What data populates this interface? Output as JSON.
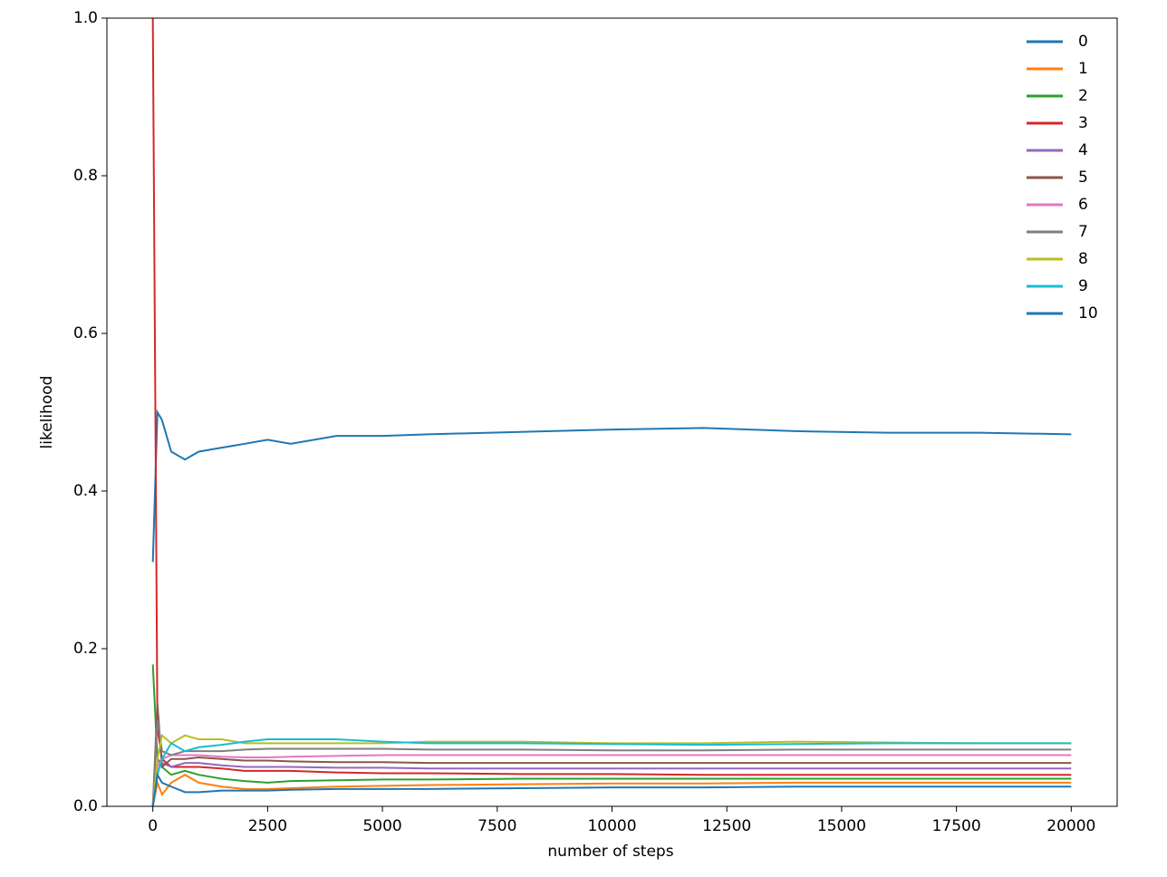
{
  "chart_data": {
    "type": "line",
    "xlabel": "number of steps",
    "ylabel": "likelihood",
    "x": [
      0,
      100,
      200,
      400,
      700,
      1000,
      1500,
      2000,
      2500,
      3000,
      4000,
      5000,
      6000,
      8000,
      10000,
      12000,
      14000,
      16000,
      18000,
      20000
    ],
    "xlim": [
      -1000,
      21000
    ],
    "ylim": [
      0,
      1
    ],
    "xticks": [
      0,
      2500,
      5000,
      7500,
      10000,
      12500,
      15000,
      17500,
      20000
    ],
    "yticks": [
      {
        "value": 0,
        "label": "0.0"
      },
      0.2,
      0.4,
      0.6,
      0.8,
      {
        "value": 1,
        "label": "1.0"
      }
    ],
    "legend": "upper right",
    "series": [
      {
        "name": "0",
        "color": "#1f77b4",
        "values": [
          0.31,
          0.5,
          0.49,
          0.45,
          0.44,
          0.45,
          0.455,
          0.46,
          0.465,
          0.46,
          0.47,
          0.47,
          0.472,
          0.475,
          0.478,
          0.48,
          0.476,
          0.474,
          0.474,
          0.472
        ]
      },
      {
        "name": "1",
        "color": "#ff7f0e",
        "values": [
          0.0,
          0.03,
          0.015,
          0.03,
          0.04,
          0.03,
          0.025,
          0.022,
          0.022,
          0.023,
          0.025,
          0.026,
          0.027,
          0.028,
          0.029,
          0.029,
          0.03,
          0.03,
          0.03,
          0.03
        ]
      },
      {
        "name": "2",
        "color": "#2ca02c",
        "values": [
          0.18,
          0.06,
          0.05,
          0.04,
          0.045,
          0.04,
          0.035,
          0.032,
          0.03,
          0.032,
          0.033,
          0.034,
          0.034,
          0.035,
          0.035,
          0.035,
          0.035,
          0.035,
          0.035,
          0.035
        ]
      },
      {
        "name": "3",
        "color": "#d62728",
        "values": [
          1.0,
          0.1,
          0.06,
          0.05,
          0.05,
          0.05,
          0.048,
          0.045,
          0.045,
          0.045,
          0.043,
          0.042,
          0.042,
          0.041,
          0.041,
          0.04,
          0.04,
          0.04,
          0.04,
          0.04
        ]
      },
      {
        "name": "4",
        "color": "#9467bd",
        "values": [
          0.0,
          0.06,
          0.055,
          0.05,
          0.055,
          0.055,
          0.052,
          0.05,
          0.05,
          0.05,
          0.049,
          0.049,
          0.048,
          0.048,
          0.048,
          0.048,
          0.048,
          0.048,
          0.048,
          0.048
        ]
      },
      {
        "name": "5",
        "color": "#8c564b",
        "values": [
          0.0,
          0.13,
          0.05,
          0.06,
          0.06,
          0.062,
          0.06,
          0.058,
          0.058,
          0.057,
          0.056,
          0.056,
          0.055,
          0.055,
          0.055,
          0.055,
          0.055,
          0.055,
          0.055,
          0.055
        ]
      },
      {
        "name": "6",
        "color": "#e377c2",
        "values": [
          0.0,
          0.05,
          0.06,
          0.065,
          0.065,
          0.065,
          0.063,
          0.062,
          0.062,
          0.063,
          0.064,
          0.065,
          0.065,
          0.065,
          0.065,
          0.065,
          0.065,
          0.065,
          0.065,
          0.065
        ]
      },
      {
        "name": "7",
        "color": "#7f7f7f",
        "values": [
          0.0,
          0.11,
          0.07,
          0.065,
          0.07,
          0.07,
          0.07,
          0.072,
          0.073,
          0.073,
          0.073,
          0.073,
          0.072,
          0.072,
          0.071,
          0.071,
          0.072,
          0.072,
          0.072,
          0.072
        ]
      },
      {
        "name": "8",
        "color": "#bcbd22",
        "values": [
          0.0,
          0.06,
          0.09,
          0.08,
          0.09,
          0.085,
          0.085,
          0.08,
          0.08,
          0.08,
          0.08,
          0.08,
          0.082,
          0.082,
          0.08,
          0.08,
          0.082,
          0.081,
          0.08,
          0.08
        ]
      },
      {
        "name": "9",
        "color": "#17becf",
        "values": [
          0.0,
          0.04,
          0.06,
          0.08,
          0.07,
          0.075,
          0.078,
          0.082,
          0.085,
          0.085,
          0.085,
          0.082,
          0.08,
          0.08,
          0.079,
          0.078,
          0.079,
          0.08,
          0.08,
          0.08
        ]
      },
      {
        "name": "10",
        "color": "#1f77b4",
        "values": [
          0.0,
          0.04,
          0.03,
          0.025,
          0.018,
          0.018,
          0.02,
          0.02,
          0.02,
          0.021,
          0.022,
          0.022,
          0.022,
          0.023,
          0.024,
          0.024,
          0.025,
          0.025,
          0.025,
          0.025
        ]
      }
    ]
  }
}
